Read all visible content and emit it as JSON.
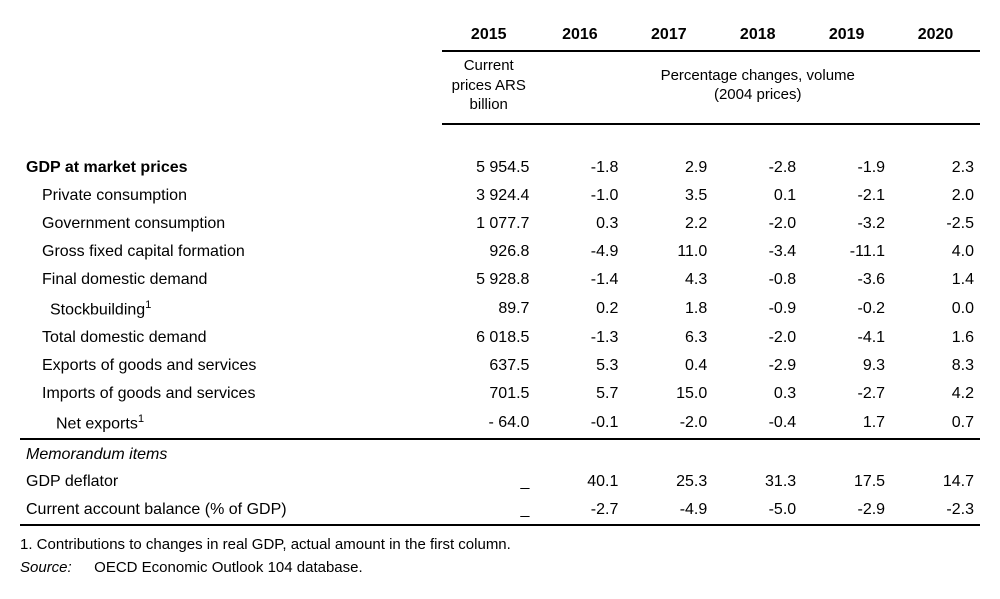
{
  "years": [
    "2015",
    "2016",
    "2017",
    "2018",
    "2019",
    "2020"
  ],
  "subheader": {
    "col2015": "Current prices ARS billion",
    "col_rest": "Percentage changes, volume (2004 prices)"
  },
  "rows": [
    {
      "label": "GDP at market prices",
      "indent": 0,
      "bold": true,
      "v": [
        "5 954.5",
        "-1.8",
        "2.9",
        "-2.8",
        "-1.9",
        "2.3"
      ]
    },
    {
      "label": "Private consumption",
      "indent": 1,
      "v": [
        "3 924.4",
        "-1.0",
        "3.5",
        "0.1",
        "-2.1",
        "2.0"
      ]
    },
    {
      "label": "Government consumption",
      "indent": 1,
      "v": [
        "1 077.7",
        "0.3",
        "2.2",
        "-2.0",
        "-3.2",
        "-2.5"
      ]
    },
    {
      "label": "Gross fixed capital formation",
      "indent": 1,
      "v": [
        "926.8",
        "-4.9",
        "11.0",
        "-3.4",
        "-11.1",
        "4.0"
      ]
    },
    {
      "label": "Final domestic demand",
      "indent": 1,
      "v": [
        "5 928.8",
        "-1.4",
        "4.3",
        "-0.8",
        "-3.6",
        "1.4"
      ]
    },
    {
      "label": "Stockbuilding",
      "sup": "1",
      "indent": 2,
      "v": [
        "89.7",
        "0.2",
        "1.8",
        "-0.9",
        "-0.2",
        "0.0"
      ]
    },
    {
      "label": "Total domestic demand",
      "indent": 1,
      "v": [
        "6 018.5",
        "-1.3",
        "6.3",
        "-2.0",
        "-4.1",
        "1.6"
      ]
    },
    {
      "label": "Exports of goods and services",
      "indent": 1,
      "v": [
        "637.5",
        "5.3",
        "0.4",
        "-2.9",
        "9.3",
        "8.3"
      ]
    },
    {
      "label": "Imports of goods and services",
      "indent": 1,
      "v": [
        "701.5",
        "5.7",
        "15.0",
        "0.3",
        "-2.7",
        "4.2"
      ]
    },
    {
      "label": "Net exports",
      "sup": "1",
      "indent": 3,
      "rule_after": true,
      "v": [
        "- 64.0",
        "-0.1",
        "-2.0",
        "-0.4",
        "1.7",
        "0.7"
      ]
    }
  ],
  "memo_header": "Memorandum items",
  "memo_rows": [
    {
      "label": "GDP deflator",
      "indent": 0,
      "v": [
        "_",
        "40.1",
        "25.3",
        "31.3",
        "17.5",
        "14.7"
      ]
    },
    {
      "label": "Current account balance (% of GDP)",
      "indent": 0,
      "rule_after": true,
      "v": [
        "_",
        "-2.7",
        "-4.9",
        "-5.0",
        "-2.9",
        "-2.3"
      ]
    }
  ],
  "footnote": "1.  Contributions to changes in real GDP, actual amount in the first column.",
  "source_label": "Source:",
  "source_text": "OECD Economic Outlook 104 database."
}
